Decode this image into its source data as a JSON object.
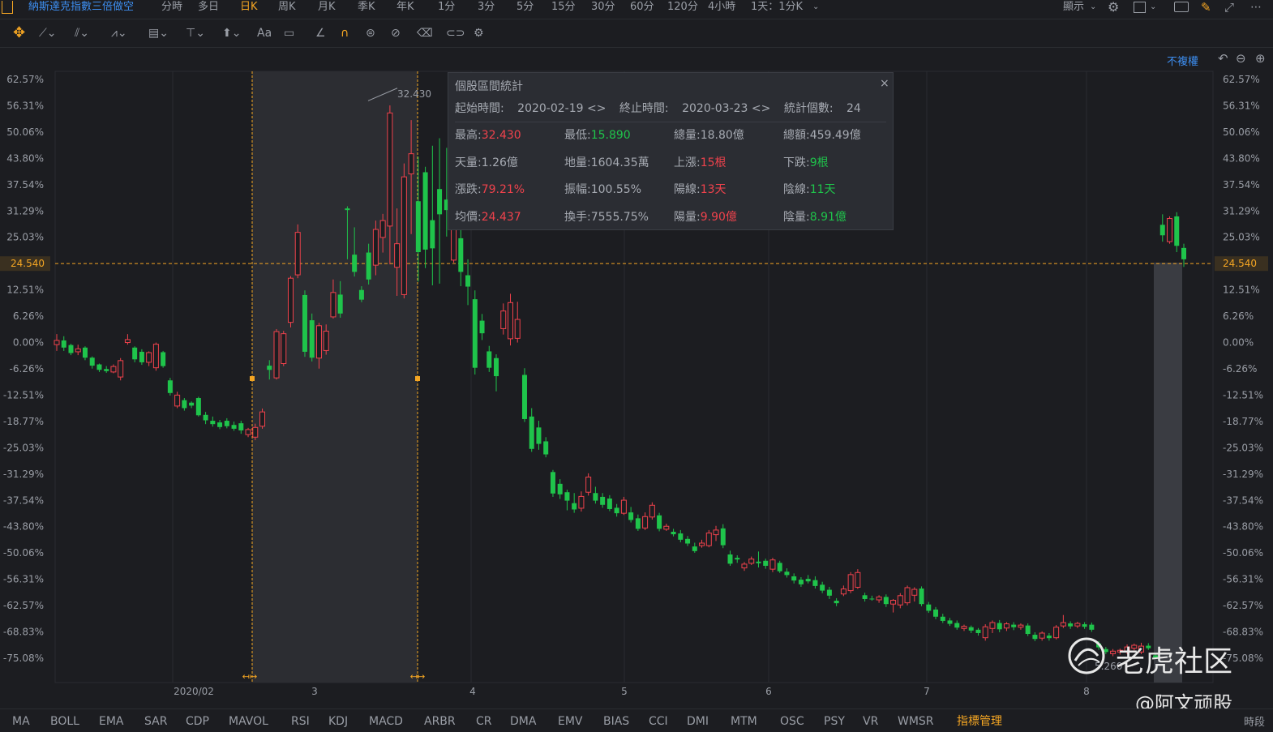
{
  "topbar": {
    "symbol": "納斯達克指數三倍做空",
    "timeframes": [
      "分時",
      "多日",
      "日K",
      "周K",
      "月K",
      "季K",
      "年K",
      "1分",
      "3分",
      "5分",
      "15分",
      "30分",
      "60分",
      "120分",
      "4小時",
      "1天：1分K"
    ],
    "active_timeframe": "日K",
    "display_label": "顯示"
  },
  "toolbar": {
    "text_tool": "Aa"
  },
  "chart_top": {
    "adjust_label": "不複權"
  },
  "price_axis": {
    "left_labels": [
      "62.57%",
      "56.31%",
      "50.06%",
      "43.80%",
      "37.54%",
      "31.29%",
      "25.03%",
      "24.540",
      "12.51%",
      "6.26%",
      "0.00%",
      "-6.26%",
      "-12.51%",
      "-18.77%",
      "-25.03%",
      "-31.29%",
      "-37.54%",
      "-43.80%",
      "-50.06%",
      "-56.31%",
      "-62.57%",
      "-68.83%",
      "-75.08%"
    ],
    "right_labels": [
      "62.57%",
      "56.31%",
      "50.06%",
      "43.80%",
      "37.54%",
      "31.29%",
      "25.03%",
      "24.540",
      "12.51%",
      "6.26%",
      "0.00%",
      "-6.26%",
      "-12.51%",
      "-18.77%",
      "-25.03%",
      "-31.29%",
      "-37.54%",
      "-43.80%",
      "-50.06%",
      "-56.31%",
      "-62.57%",
      "-68.83%",
      "-75.08%"
    ],
    "current_price": "24.540"
  },
  "time_axis": {
    "labels": [
      "2020/02",
      "3",
      "4",
      "5",
      "6",
      "7",
      "8"
    ]
  },
  "markers": {
    "high_label": "32.430",
    "low_label": "5.260"
  },
  "stats": {
    "title": "個股區間統計",
    "start_label": "起始時間:",
    "start_value": "2020-02-19",
    "end_label": "終止時間:",
    "end_value": "2020-03-23",
    "count_label": "統計個數:",
    "count_value": "24",
    "rows": [
      [
        {
          "label": "最高:",
          "value": "32.430",
          "color": "red"
        },
        {
          "label": "最低:",
          "value": "15.890",
          "color": "green"
        },
        {
          "label": "總量:",
          "value": "18.80億",
          "color": ""
        },
        {
          "label": "總額:",
          "value": "459.49億",
          "color": ""
        }
      ],
      [
        {
          "label": "天量:",
          "value": "1.26億",
          "color": ""
        },
        {
          "label": "地量:",
          "value": "1604.35萬",
          "color": ""
        },
        {
          "label": "上漲:",
          "value": "15根",
          "color": "red"
        },
        {
          "label": "下跌:",
          "value": "9根",
          "color": "green"
        }
      ],
      [
        {
          "label": "漲跌:",
          "value": "79.21%",
          "color": "red"
        },
        {
          "label": "振幅:",
          "value": "100.55%",
          "color": ""
        },
        {
          "label": "陽線:",
          "value": "13天",
          "color": "red"
        },
        {
          "label": "陰線:",
          "value": "11天",
          "color": "green"
        }
      ],
      [
        {
          "label": "均價:",
          "value": "24.437",
          "color": "red"
        },
        {
          "label": "換手:",
          "value": "7555.75%",
          "color": ""
        },
        {
          "label": "陽量:",
          "value": "9.90億",
          "color": "red"
        },
        {
          "label": "陰量:",
          "value": "8.91億",
          "color": "green"
        }
      ]
    ]
  },
  "indicators": {
    "items": [
      "MA",
      "BOLL",
      "EMA",
      "SAR",
      "CDP",
      "MAVOL",
      "RSI",
      "KDJ",
      "MACD",
      "ARBR",
      "CR",
      "DMA",
      "EMV",
      "BIAS",
      "CCI",
      "DMI",
      "MTM",
      "OSC",
      "PSY",
      "VR",
      "WMSR"
    ],
    "manage_label": "指標管理",
    "period_label": "時段"
  },
  "watermark": {
    "brand": "老虎社区",
    "author": "@阿文顽股"
  },
  "colors": {
    "up": "#f0424c",
    "down": "#1fc44b",
    "accent": "#f5a623",
    "link": "#3d8ef0",
    "background": "#1c1d21"
  },
  "chart_data": {
    "type": "candlestick",
    "axis_mode": "percent change",
    "ylim_percent": [
      -75.08,
      62.57
    ],
    "current_price": 24.54,
    "x_tick_labels": [
      "2020/02",
      "3",
      "4",
      "5",
      "6",
      "7",
      "8"
    ],
    "selection_range": [
      "2020-02-19",
      "2020-03-23"
    ],
    "selection_high": 32.43,
    "period_low": 5.26,
    "candles_percent": [
      {
        "o": -0.5,
        "c": 0.5,
        "h": 2,
        "l": -2
      },
      {
        "o": 0.5,
        "c": -1.2,
        "h": 1.5,
        "l": -2
      },
      {
        "o": -0.6,
        "c": -2.5,
        "h": -0.3,
        "l": -3
      },
      {
        "o": -2.2,
        "c": -1.5,
        "h": -0.5,
        "l": -3
      },
      {
        "o": -1.2,
        "c": -3.6,
        "h": -0.9,
        "l": -4.2
      },
      {
        "o": -3.6,
        "c": -5.5,
        "h": -3.3,
        "l": -6.2
      },
      {
        "o": -5.2,
        "c": -6.5,
        "h": -5.0,
        "l": -7.0
      },
      {
        "o": -6.3,
        "c": -6.8,
        "h": -5.6,
        "l": -7.2
      },
      {
        "o": -7.0,
        "c": -5.7,
        "h": -5.2,
        "l": -7.3
      },
      {
        "o": -8.2,
        "c": -4.3,
        "h": -3.7,
        "l": -9.0
      },
      {
        "o": 0.0,
        "c": 0.7,
        "h": 2.0,
        "l": -0.5
      },
      {
        "o": -1.2,
        "c": -4.0,
        "h": -0.9,
        "l": -4.7
      },
      {
        "o": -2.2,
        "c": -4.7,
        "h": -1.6,
        "l": -5.3
      },
      {
        "o": -4.7,
        "c": -2.4,
        "h": -2.1,
        "l": -5.6
      },
      {
        "o": -6.0,
        "c": -0.4,
        "h": 0.0,
        "l": -6.7
      },
      {
        "o": -2.3,
        "c": -5.6,
        "h": -2.0,
        "l": -6.0
      },
      {
        "o": -9.0,
        "c": -12.0,
        "h": -8.4,
        "l": -12.6
      },
      {
        "o": -15.1,
        "c": -12.5,
        "h": -11.7,
        "l": -15.6
      },
      {
        "o": -13.7,
        "c": -15.6,
        "h": -13.2,
        "l": -16.2
      },
      {
        "o": -14.3,
        "c": -15.0,
        "h": -14.0,
        "l": -15.6
      },
      {
        "o": -13.2,
        "c": -17.3,
        "h": -12.9,
        "l": -17.6
      },
      {
        "o": -17.2,
        "c": -18.5,
        "h": -16.5,
        "l": -19.4
      },
      {
        "o": -18.6,
        "c": -19.4,
        "h": -17.6,
        "l": -20.0
      },
      {
        "o": -19.0,
        "c": -20.1,
        "h": -18.4,
        "l": -20.6
      },
      {
        "o": -18.6,
        "c": -19.9,
        "h": -18.0,
        "l": -20.4
      },
      {
        "o": -19.6,
        "c": -20.5,
        "h": -18.8,
        "l": -21.0
      },
      {
        "o": -19.2,
        "c": -20.9,
        "h": -18.6,
        "l": -21.7
      },
      {
        "o": -21.9,
        "c": -20.7,
        "h": -20.3,
        "l": -22.5
      },
      {
        "o": -22.5,
        "c": -20.2,
        "h": -19.3,
        "l": -23.2
      },
      {
        "o": -19.9,
        "c": -16.5,
        "h": -15.7,
        "l": -20.5
      },
      {
        "o": -5.5,
        "c": -6.5,
        "h": -4.2,
        "l": -8.8
      },
      {
        "o": -8.4,
        "c": 2.6,
        "h": 3.2,
        "l": -8.8
      },
      {
        "o": -5.0,
        "c": 2.1,
        "h": 2.8,
        "l": -5.6
      },
      {
        "o": 4.8,
        "c": 15.3,
        "h": 15.8,
        "l": 3.6
      },
      {
        "o": 16.1,
        "c": 26.2,
        "h": 28.1,
        "l": 15.3
      },
      {
        "o": 11.3,
        "c": -2.2,
        "h": 12.4,
        "l": -3.4
      },
      {
        "o": 5.3,
        "c": -3.6,
        "h": 6.9,
        "l": -4.5
      },
      {
        "o": -3.7,
        "c": 4.0,
        "h": 4.7,
        "l": -6.2
      },
      {
        "o": -1.9,
        "c": 2.7,
        "h": 4.3,
        "l": -2.9
      },
      {
        "o": 6.1,
        "c": 11.9,
        "h": 15.0,
        "l": 5.7
      },
      {
        "o": 11.4,
        "c": 6.9,
        "h": 14.6,
        "l": 5.9
      },
      {
        "o": 31.9,
        "c": 31.5,
        "h": 32.4,
        "l": 19.8
      },
      {
        "o": 20.9,
        "c": 16.8,
        "h": 27.4,
        "l": 15.7
      },
      {
        "o": 12.5,
        "c": 10.2,
        "h": 13.4,
        "l": 9.6
      },
      {
        "o": 21.4,
        "c": 15.0,
        "h": 23.5,
        "l": 13.8
      },
      {
        "o": 18.4,
        "c": 26.9,
        "h": 29.0,
        "l": 16.0
      },
      {
        "o": 25.0,
        "c": 29.0,
        "h": 30.6,
        "l": 21.4
      },
      {
        "o": 27.7,
        "c": 54.6,
        "h": 56.4,
        "l": 18.6
      },
      {
        "o": 17.9,
        "c": 23.5,
        "h": 31.9,
        "l": 11.1
      },
      {
        "o": 11.4,
        "c": 39.4,
        "h": 42.6,
        "l": 10.5
      },
      {
        "o": 40.1,
        "c": 44.9,
        "h": 52.9,
        "l": 25.8
      },
      {
        "o": 33.6,
        "c": 21.5,
        "h": 44.2,
        "l": 14.5
      },
      {
        "o": 40.5,
        "c": 22.1,
        "h": 41.8,
        "l": 17.7
      },
      {
        "o": 29.1,
        "c": 22.4,
        "h": 46.8,
        "l": 13.6
      },
      {
        "o": 36.5,
        "c": 30.5,
        "h": 48.6,
        "l": 14.0
      },
      {
        "o": 34.0,
        "c": 31.5,
        "h": 46.3,
        "l": 25.2
      },
      {
        "o": 19.6,
        "c": 42.5,
        "h": 45.0,
        "l": 19.0
      },
      {
        "o": 24.8,
        "c": 16.8,
        "h": 29.3,
        "l": 13.4
      },
      {
        "o": 16.0,
        "c": 13.3,
        "h": 19.8,
        "l": 8.9
      },
      {
        "o": 10.3,
        "c": -6.0,
        "h": 12.4,
        "l": -7.6
      },
      {
        "o": 5.2,
        "c": 2.2,
        "h": 6.8,
        "l": 0.6
      },
      {
        "o": -2.1,
        "c": -6.0,
        "h": -0.8,
        "l": -7.0
      },
      {
        "o": -3.7,
        "c": -8.0,
        "h": -2.8,
        "l": -11.6
      },
      {
        "o": 3.3,
        "c": 7.5,
        "h": 9.3,
        "l": 1.9
      },
      {
        "o": 0.9,
        "c": 9.5,
        "h": 11.6,
        "l": -0.7
      },
      {
        "o": 1.0,
        "c": 5.5,
        "h": 9.7,
        "l": 0.0
      },
      {
        "o": -7.7,
        "c": -18.2,
        "h": -6.1,
        "l": -18.9
      },
      {
        "o": -17.6,
        "c": -25.3,
        "h": -15.6,
        "l": -26.0
      },
      {
        "o": -20.2,
        "c": -24.1,
        "h": -18.6,
        "l": -25.5
      },
      {
        "o": -23.5,
        "c": -26.6,
        "h": -22.5,
        "l": -27.3
      },
      {
        "o": -30.8,
        "c": -35.9,
        "h": -30.3,
        "l": -36.7
      },
      {
        "o": -33.6,
        "c": -36.1,
        "h": -32.5,
        "l": -37.2
      },
      {
        "o": -35.6,
        "c": -37.6,
        "h": -35.0,
        "l": -39.9
      },
      {
        "o": -38.2,
        "c": -39.7,
        "h": -35.8,
        "l": -40.5
      },
      {
        "o": -39.4,
        "c": -36.6,
        "h": -35.4,
        "l": -40.2
      },
      {
        "o": -35.6,
        "c": -32.0,
        "h": -31.1,
        "l": -36.4
      },
      {
        "o": -35.8,
        "c": -37.6,
        "h": -34.3,
        "l": -38.3
      },
      {
        "o": -36.7,
        "c": -38.6,
        "h": -35.8,
        "l": -39.3
      },
      {
        "o": -37.1,
        "c": -39.6,
        "h": -36.3,
        "l": -40.1
      },
      {
        "o": -39.3,
        "c": -40.6,
        "h": -38.4,
        "l": -41.4
      },
      {
        "o": -40.6,
        "c": -37.5,
        "h": -36.7,
        "l": -41.0
      },
      {
        "o": -40.4,
        "c": -42.2,
        "h": -39.1,
        "l": -42.8
      },
      {
        "o": -41.8,
        "c": -44.3,
        "h": -40.9,
        "l": -44.8
      },
      {
        "o": -44.1,
        "c": -41.4,
        "h": -40.4,
        "l": -44.6
      },
      {
        "o": -41.5,
        "c": -38.7,
        "h": -38.0,
        "l": -42.1
      },
      {
        "o": -41.1,
        "c": -44.3,
        "h": -40.5,
        "l": -44.9
      },
      {
        "o": -44.4,
        "c": -43.7,
        "h": -43.1,
        "l": -44.8
      },
      {
        "o": -45.0,
        "c": -45.6,
        "h": -44.3,
        "l": -46.1
      },
      {
        "o": -45.4,
        "c": -46.9,
        "h": -44.6,
        "l": -47.5
      },
      {
        "o": -46.7,
        "c": -47.8,
        "h": -46.0,
        "l": -48.4
      },
      {
        "o": -48.5,
        "c": -49.6,
        "h": -47.6,
        "l": -50.0
      },
      {
        "o": -48.3,
        "c": -47.7,
        "h": -46.9,
        "l": -48.8
      },
      {
        "o": -48.3,
        "c": -45.3,
        "h": -44.6,
        "l": -48.7
      },
      {
        "o": -45.7,
        "c": -44.6,
        "h": -43.6,
        "l": -47.2
      },
      {
        "o": -44.2,
        "c": -48.2,
        "h": -43.2,
        "l": -48.9
      },
      {
        "o": -50.4,
        "c": -52.6,
        "h": -49.5,
        "l": -53.1
      },
      {
        "o": -51.2,
        "c": -51.6,
        "h": -50.6,
        "l": -52.4
      },
      {
        "o": -53.6,
        "c": -52.7,
        "h": -52.2,
        "l": -54.3
      },
      {
        "o": -52.5,
        "c": -51.5,
        "h": -50.9,
        "l": -52.9
      },
      {
        "o": -52.1,
        "c": -52.5,
        "h": -49.7,
        "l": -53.5
      },
      {
        "o": -51.9,
        "c": -53.1,
        "h": -51.4,
        "l": -53.8
      },
      {
        "o": -53.9,
        "c": -51.7,
        "h": -51.2,
        "l": -54.6
      },
      {
        "o": -52.4,
        "c": -54.4,
        "h": -51.9,
        "l": -54.8
      },
      {
        "o": -54.5,
        "c": -55.3,
        "h": -53.7,
        "l": -55.9
      },
      {
        "o": -55.6,
        "c": -56.6,
        "h": -54.9,
        "l": -57.3
      },
      {
        "o": -56.4,
        "c": -57.5,
        "h": -55.8,
        "l": -58.1
      },
      {
        "o": -56.2,
        "c": -56.8,
        "h": -55.3,
        "l": -57.3
      },
      {
        "o": -56.5,
        "c": -57.9,
        "h": -55.6,
        "l": -58.5
      },
      {
        "o": -57.6,
        "c": -59.0,
        "h": -56.9,
        "l": -59.6
      },
      {
        "o": -58.8,
        "c": -60.2,
        "h": -58.1,
        "l": -61.0
      },
      {
        "o": -61.4,
        "c": -62.0,
        "h": -60.8,
        "l": -62.7
      },
      {
        "o": -59.8,
        "c": -58.6,
        "h": -57.8,
        "l": -60.3
      },
      {
        "o": -59.0,
        "c": -55.2,
        "h": -54.6,
        "l": -59.6
      },
      {
        "o": -58.2,
        "c": -54.7,
        "h": -53.9,
        "l": -58.6
      },
      {
        "o": -60.1,
        "c": -61.0,
        "h": -59.5,
        "l": -61.6
      },
      {
        "o": -60.9,
        "c": -61.0,
        "h": -60.2,
        "l": -61.4
      },
      {
        "o": -61.2,
        "c": -60.5,
        "h": -60.1,
        "l": -61.9
      },
      {
        "o": -60.5,
        "c": -62.2,
        "h": -59.9,
        "l": -62.9
      },
      {
        "o": -62.2,
        "c": -61.3,
        "h": -61.0,
        "l": -64.2
      },
      {
        "o": -62.4,
        "c": -60.2,
        "h": -59.6,
        "l": -63.2
      },
      {
        "o": -61.9,
        "c": -58.3,
        "h": -57.8,
        "l": -62.5
      },
      {
        "o": -60.1,
        "c": -58.7,
        "h": -58.2,
        "l": -61.6
      },
      {
        "o": -58.5,
        "c": -62.2,
        "h": -58.0,
        "l": -62.7
      },
      {
        "o": -62.3,
        "c": -63.8,
        "h": -61.7,
        "l": -64.3
      },
      {
        "o": -63.5,
        "c": -65.2,
        "h": -62.9,
        "l": -65.8
      },
      {
        "o": -65.2,
        "c": -66.2,
        "h": -64.5,
        "l": -66.7
      },
      {
        "o": -66.1,
        "c": -66.9,
        "h": -65.5,
        "l": -67.4
      },
      {
        "o": -66.7,
        "c": -67.8,
        "h": -66.1,
        "l": -68.3
      },
      {
        "o": -68.0,
        "c": -67.5,
        "h": -67.1,
        "l": -68.6
      },
      {
        "o": -67.7,
        "c": -68.5,
        "h": -67.3,
        "l": -69.1
      },
      {
        "o": -68.3,
        "c": -69.1,
        "h": -67.9,
        "l": -69.7
      },
      {
        "o": -70.2,
        "c": -67.6,
        "h": -67.0,
        "l": -70.9
      },
      {
        "o": -68.0,
        "c": -66.6,
        "h": -66.1,
        "l": -69.1
      },
      {
        "o": -66.7,
        "c": -68.2,
        "h": -66.0,
        "l": -68.9
      },
      {
        "o": -67.9,
        "c": -66.9,
        "h": -66.5,
        "l": -68.6
      },
      {
        "o": -67.1,
        "c": -67.7,
        "h": -66.5,
        "l": -68.4
      },
      {
        "o": -67.7,
        "c": -67.2,
        "h": -66.8,
        "l": -68.3
      },
      {
        "o": -67.3,
        "c": -69.3,
        "h": -66.8,
        "l": -69.8
      },
      {
        "o": -69.5,
        "c": -70.5,
        "h": -68.9,
        "l": -71.0
      },
      {
        "o": -70.3,
        "c": -69.1,
        "h": -68.7,
        "l": -70.9
      },
      {
        "o": -69.7,
        "c": -70.3,
        "h": -69.1,
        "l": -70.9
      },
      {
        "o": -70.2,
        "c": -67.7,
        "h": -67.2,
        "l": -70.6
      },
      {
        "o": -67.4,
        "c": -66.6,
        "h": -64.8,
        "l": -67.9
      },
      {
        "o": -66.8,
        "c": -67.5,
        "h": -66.3,
        "l": -68.1
      },
      {
        "o": -67.4,
        "c": -66.8,
        "h": -66.4,
        "l": -67.9
      },
      {
        "o": -67.0,
        "c": -67.6,
        "h": -66.5,
        "l": -68.1
      },
      {
        "o": -67.1,
        "c": -68.3,
        "h": -66.6,
        "l": -68.8
      },
      {
        "o": -71.6,
        "c": -72.5,
        "h": -71.0,
        "l": -73.1
      },
      {
        "o": -72.9,
        "c": -73.6,
        "h": -72.4,
        "l": -74.1
      },
      {
        "o": -74.0,
        "c": -73.4,
        "h": -72.9,
        "l": -74.6
      },
      {
        "o": -73.6,
        "c": -73.2,
        "h": -72.8,
        "l": -74.2
      },
      {
        "o": -73.6,
        "c": -72.4,
        "h": -71.8,
        "l": -74.1
      },
      {
        "o": -72.7,
        "c": -72.0,
        "h": -71.6,
        "l": -73.2
      },
      {
        "o": -73.6,
        "c": -72.2,
        "h": -71.4,
        "l": -74.1
      },
      {
        "o": -72.1,
        "c": -72.7,
        "h": -71.5,
        "l": -73.1
      },
      {
        "o": -74.4,
        "c": -74.9,
        "h": -73.8,
        "l": -75.3
      },
      {
        "o": 28.0,
        "c": 25.5,
        "h": 30.5,
        "l": 24.0
      },
      {
        "o": 24.0,
        "c": 29.5,
        "h": 30.0,
        "l": 23.5
      },
      {
        "o": 30.0,
        "c": 23.0,
        "h": 31.0,
        "l": 21.5
      },
      {
        "o": 22.5,
        "c": 19.8,
        "h": 23.5,
        "l": 18.0
      }
    ]
  }
}
